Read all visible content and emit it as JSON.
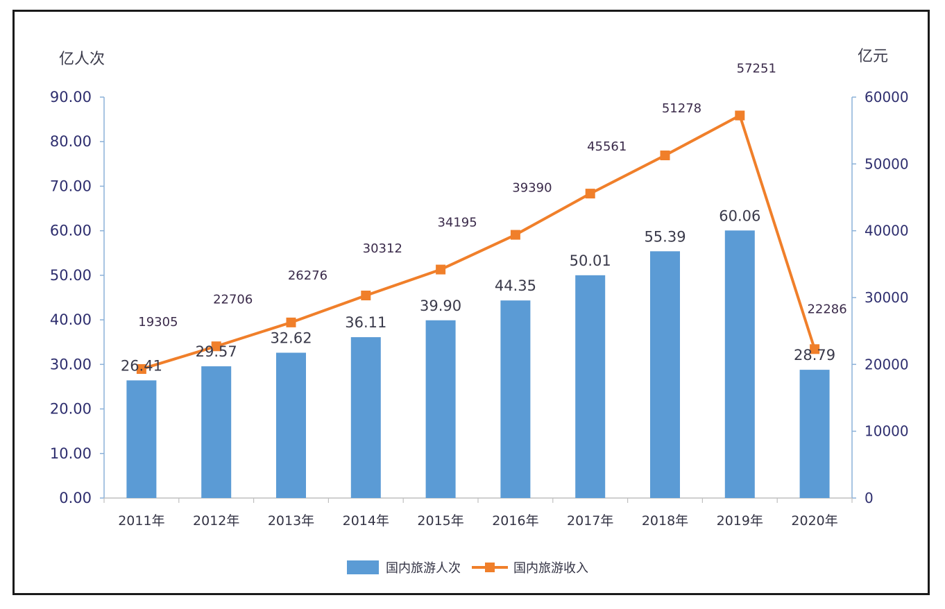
{
  "chart_data": {
    "type": "bar",
    "categories": [
      "2011年",
      "2012年",
      "2013年",
      "2014年",
      "2015年",
      "2016年",
      "2017年",
      "2018年",
      "2019年",
      "2020年"
    ],
    "series": [
      {
        "name": "国内旅游人次",
        "type": "bar",
        "axis": "left",
        "unit": "亿人次",
        "color": "#5b9bd5",
        "values": [
          26.41,
          29.57,
          32.62,
          36.11,
          39.9,
          44.35,
          50.01,
          55.39,
          60.06,
          28.79
        ]
      },
      {
        "name": "国内旅游收入",
        "type": "line",
        "axis": "right",
        "unit": "亿元",
        "color": "#f07f2a",
        "values": [
          19305,
          22706,
          26276,
          30312,
          34195,
          39390,
          45561,
          51278,
          57251,
          22286
        ]
      }
    ],
    "y_left": {
      "label": "亿人次",
      "range": [
        0,
        90
      ],
      "ticks": [
        "0.00",
        "10.00",
        "20.00",
        "30.00",
        "40.00",
        "50.00",
        "60.00",
        "70.00",
        "80.00",
        "90.00"
      ]
    },
    "y_right": {
      "label": "亿元",
      "range": [
        0,
        60000
      ],
      "ticks": [
        "0",
        "10000",
        "20000",
        "30000",
        "40000",
        "50000",
        "60000"
      ]
    },
    "bar_labels": [
      "26.41",
      "29.57",
      "32.62",
      "36.11",
      "39.90",
      "44.35",
      "50.01",
      "55.39",
      "60.06",
      "28.79"
    ],
    "line_labels": [
      "19305",
      "22706",
      "26276",
      "30312",
      "34195",
      "39390",
      "45561",
      "51278",
      "57251",
      "22286"
    ],
    "legend": {
      "position": "bottom",
      "items": [
        "国内旅游人次",
        "国内旅游收入"
      ]
    },
    "grid": false
  }
}
